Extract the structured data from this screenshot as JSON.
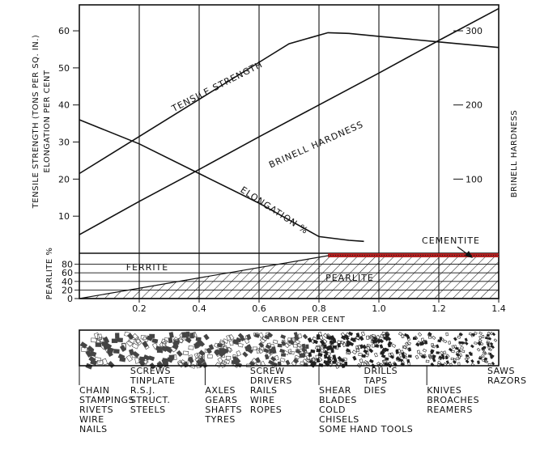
{
  "chart_data": {
    "type": "line",
    "xlabel": "CARBON PER CENT",
    "xlim": [
      0,
      1.4
    ],
    "x_ticks": [
      "0.2",
      "0.4",
      "0.6",
      "0.8",
      "1.0",
      "1.2",
      "1.4"
    ],
    "left_axis": {
      "label_line1": "TENSILE STRENGTH (TONS PER SQ. IN.)",
      "label_line2": "ELONGATION PER CENT",
      "ylim": [
        0,
        67
      ],
      "ticks": [
        "10",
        "20",
        "30",
        "40",
        "50",
        "60"
      ]
    },
    "right_axis": {
      "label": "BRINELL HARDNESS",
      "ylim": [
        0,
        335
      ],
      "ticks": [
        "100",
        "200",
        "300"
      ]
    },
    "series": [
      {
        "name": "TENSILE STRENGTH",
        "axis": "left",
        "x": [
          0,
          0.2,
          0.4,
          0.6,
          0.7,
          0.83,
          0.9,
          1.0,
          1.2,
          1.4
        ],
        "y": [
          21.5,
          31.5,
          41.5,
          51.5,
          56.5,
          59.5,
          59.3,
          58.5,
          57,
          55.5
        ]
      },
      {
        "name": "BRINELL HARDNESS",
        "axis": "right",
        "x": [
          0,
          0.2,
          0.4,
          0.6,
          0.8,
          1.0,
          1.2,
          1.4
        ],
        "y": [
          25,
          70,
          113,
          157,
          200,
          243,
          287,
          330
        ]
      },
      {
        "name": "ELONGATION %",
        "axis": "left",
        "x": [
          0,
          0.2,
          0.4,
          0.6,
          0.7,
          0.8,
          0.9,
          0.95
        ],
        "y": [
          36,
          29.5,
          21.5,
          13.5,
          9,
          4.5,
          3.5,
          3.2
        ]
      }
    ],
    "pearlite": {
      "axis_label": "PEARLITE %",
      "ticks": [
        "0",
        "20",
        "40",
        "60",
        "80"
      ],
      "ylim": [
        0,
        100
      ],
      "x": [
        0,
        0.83,
        1.4
      ],
      "y": [
        0,
        100,
        100
      ],
      "regions": [
        "FERRITE",
        "PEARLITE",
        "CEMENTITE"
      ]
    },
    "uses": [
      {
        "x": 0.0,
        "lines": [
          "CHAIN",
          "STAMPINGS",
          "RIVETS",
          "WIRE",
          "NAILS"
        ]
      },
      {
        "x": 0.17,
        "lines": [
          "SCREWS",
          "TINPLATE",
          "R.S.J.",
          "STRUCT.",
          "STEELS"
        ]
      },
      {
        "x": 0.42,
        "lines": [
          "AXLES",
          "GEARS",
          "SHAFTS",
          "TYRES"
        ]
      },
      {
        "x": 0.57,
        "lines": [
          "SCREW",
          "DRIVERS",
          "RAILS",
          "WIRE",
          "ROPES"
        ]
      },
      {
        "x": 0.8,
        "lines": [
          "SHEAR",
          "BLADES",
          "COLD",
          "CHISELS",
          "SOME HAND TOOLS"
        ]
      },
      {
        "x": 0.95,
        "lines": [
          "DRILLS",
          "TAPS",
          "DIES"
        ]
      },
      {
        "x": 1.16,
        "lines": [
          "KNIVES",
          "BROACHES",
          "REAMERS"
        ]
      },
      {
        "x": 1.38,
        "lines": [
          "SAWS",
          "RAZORS"
        ]
      }
    ]
  }
}
